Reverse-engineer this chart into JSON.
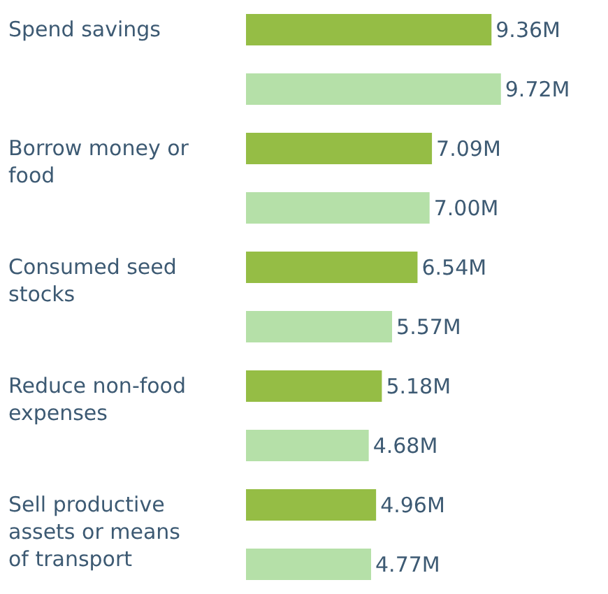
{
  "chart_data": {
    "type": "bar",
    "orientation": "horizontal",
    "categories": [
      "Spend savings",
      "Borrow money or food",
      "Consumed seed stocks",
      "Reduce non-food expenses",
      "Sell productive assets or means of transport"
    ],
    "series": [
      {
        "color": "#95bd45",
        "values": [
          9.36,
          7.09,
          6.54,
          5.18,
          4.96
        ],
        "value_labels": [
          "9.36M",
          "7.09M",
          "6.54M",
          "5.18M",
          "4.96M"
        ]
      },
      {
        "color": "#b5e0a8",
        "values": [
          9.72,
          7.0,
          5.57,
          4.68,
          4.77
        ],
        "value_labels": [
          "9.72M",
          "7.00M",
          "5.57M",
          "4.68M",
          "4.77M"
        ]
      }
    ]
  }
}
